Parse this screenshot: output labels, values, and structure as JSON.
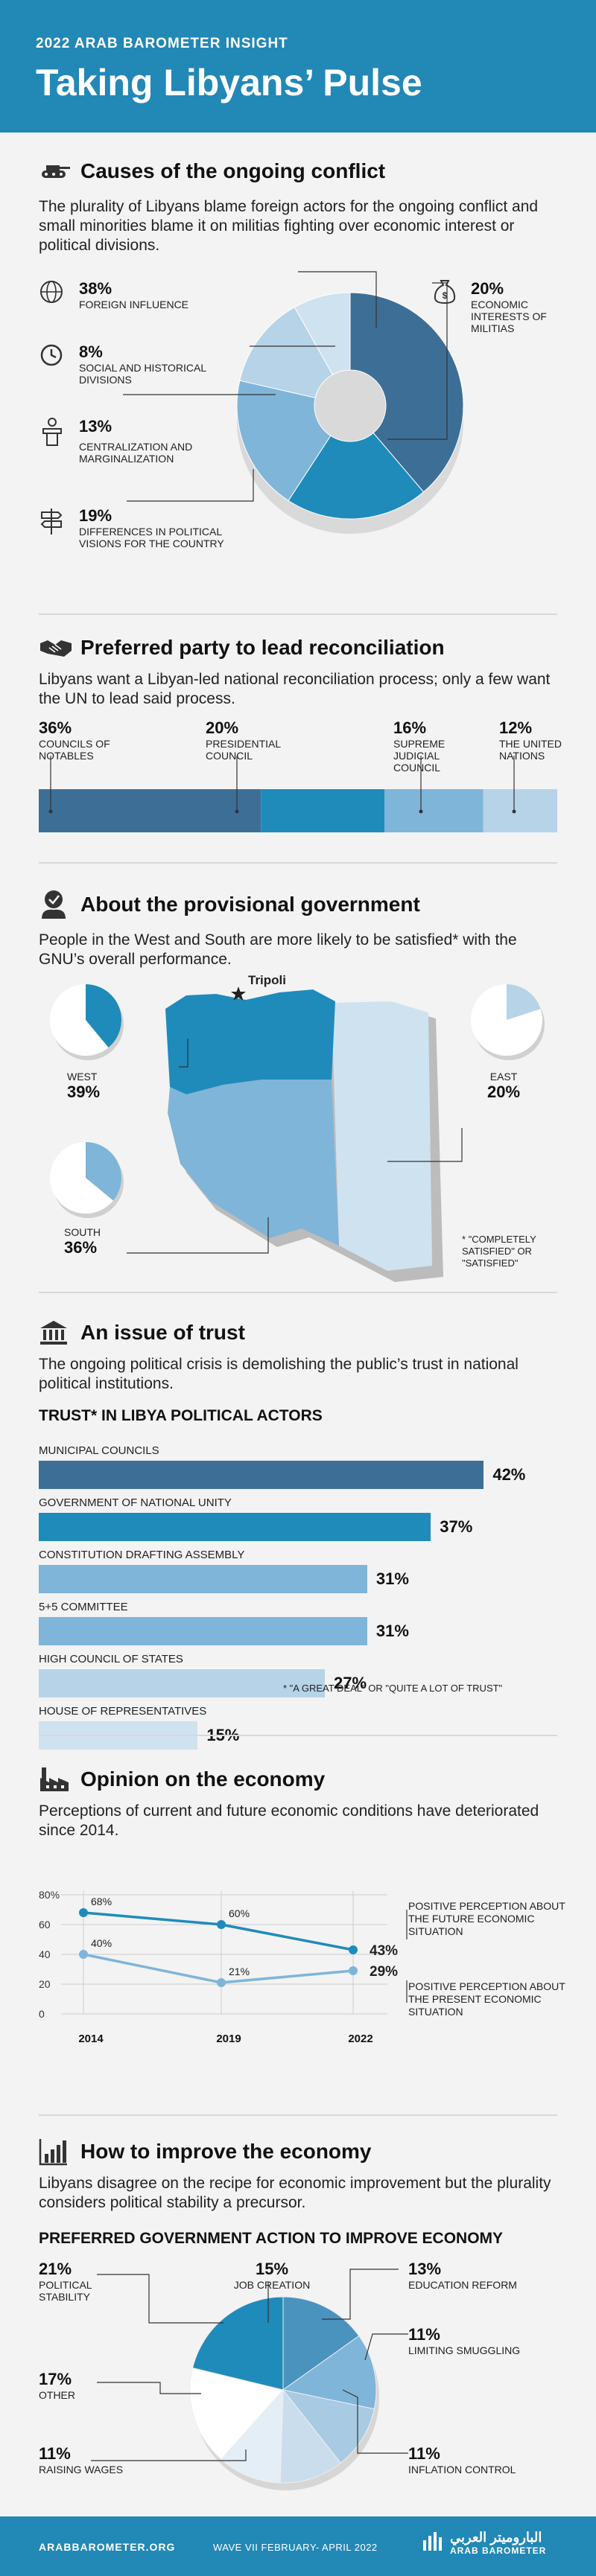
{
  "header": {
    "kicker": "2022 ARAB BAROMETER INSIGHT",
    "title": "Taking Libyans’ Pulse"
  },
  "s1": {
    "title": "Causes of the ongoing conflict",
    "intro": "The plurality of Libyans blame foreign actors for the ongoing conflict and small minorities blame it on militias fighting over economic interest or political divisions."
  },
  "s2": {
    "title": "Preferred party to lead reconciliation",
    "intro": "Libyans want a Libyan-led national reconciliation process; only a few want the UN to lead said process."
  },
  "s3": {
    "title": "About the provisional government",
    "intro": "People in the West and South are more likely to be satisfied* with the GNU’s overall performance.",
    "city": "Tripoli",
    "note": "* \"COMPLETELY SATISFIED\" OR \"SATISFIED\""
  },
  "s4": {
    "title": "An issue of trust",
    "intro": "The ongoing political crisis is demolishing the public’s trust in national political institutions.",
    "subtitle": "TRUST* IN LIBYA POLITICAL ACTORS",
    "note": "* \"A GREAT DEAL\" OR \"QUITE A LOT OF TRUST\""
  },
  "s5": {
    "title": "Opinion on the economy",
    "intro": "Perceptions of current and future economic conditions have deteriorated since 2014."
  },
  "s6": {
    "title": "How to improve the economy",
    "intro": "Libyans disagree on the recipe for economic improvement but the plurality considers political stability a precursor.",
    "subtitle": "PREFERRED GOVERNMENT ACTION TO IMPROVE ECONOMY"
  },
  "footer": {
    "site": "ARABBAROMETER.ORG",
    "wave": "WAVE VII FEBRUARY- APRIL 2022",
    "arabic": "الباروميتر العربي",
    "brand": "ARAB BAROMETER"
  },
  "colors": {
    "dark": "#3d6f96",
    "mid": "#1f8bbb",
    "light": "#7fb5d8",
    "pale": "#b6d3e8",
    "paler": "#cfe2f0"
  },
  "chart_data": [
    {
      "type": "pie",
      "title": "Causes of the ongoing conflict",
      "slices": [
        {
          "label": "FOREIGN INFLUENCE",
          "value": 38,
          "color": "#3d6f96"
        },
        {
          "label": "ECONOMIC INTERESTS OF MILITIAS",
          "value": 20,
          "color": "#1f8bbb"
        },
        {
          "label": "DIFFERENCES IN POLITICAL VISIONS FOR THE COUNTRY",
          "value": 19,
          "color": "#7fb5d8"
        },
        {
          "label": "CENTRALIZATION AND MARGINALIZATION",
          "value": 13,
          "color": "#b6d3e8"
        },
        {
          "label": "SOCIAL AND HISTORICAL DIVISIONS",
          "value": 8,
          "color": "#cfe2f0"
        }
      ],
      "labels": {
        "v0": "38%",
        "v1": "20%",
        "v2": "19%",
        "v3": "13%",
        "v4": "8%"
      }
    },
    {
      "type": "bar",
      "title": "Preferred party to lead reconciliation",
      "stacked": true,
      "categories": [
        "COUNCILS OF NOTABLES",
        "PRESIDENTIAL COUNCIL",
        "SUPREME JUDICIAL COUNCIL",
        "THE UNITED NATIONS"
      ],
      "values": [
        36,
        20,
        16,
        12
      ],
      "labels": [
        "36%",
        "20%",
        "16%",
        "12%"
      ],
      "colors": [
        "#3d6f96",
        "#1f8bbb",
        "#7fb5d8",
        "#b6d3e8"
      ]
    },
    {
      "type": "pie",
      "title": "About the provisional government",
      "regions": [
        {
          "label": "WEST",
          "value": 39,
          "text": "39%"
        },
        {
          "label": "EAST",
          "value": 20,
          "text": "20%"
        },
        {
          "label": "SOUTH",
          "value": 36,
          "text": "36%"
        }
      ]
    },
    {
      "type": "bar",
      "title": "TRUST* IN LIBYA POLITICAL ACTORS",
      "orientation": "horizontal",
      "categories": [
        "MUNICIPAL COUNCILS",
        "GOVERNMENT OF NATIONAL UNITY",
        "CONSTITUTION DRAFTING ASSEMBLY",
        "5+5 COMMITTEE",
        "HIGH COUNCIL OF STATES",
        "HOUSE OF REPRESENTATIVES"
      ],
      "values": [
        42,
        37,
        31,
        31,
        27,
        15
      ],
      "labels": [
        "42%",
        "37%",
        "31%",
        "31%",
        "27%",
        "15%"
      ],
      "colors": [
        "#3d6f96",
        "#1f8bbb",
        "#7fb5d8",
        "#7fb5d8",
        "#b6d3e8",
        "#cfe2f0"
      ],
      "xlim": [
        0,
        45
      ]
    },
    {
      "type": "line",
      "title": "Opinion on the economy",
      "x": [
        "2014",
        "2019",
        "2022"
      ],
      "yticks": [
        "80%",
        "60",
        "40",
        "20",
        "0"
      ],
      "ylim": [
        0,
        80
      ],
      "series": [
        {
          "name": "POSITIVE PERCEPTION ABOUT THE FUTURE ECONOMIC SITUATION",
          "values": [
            68,
            60,
            43
          ],
          "labels": [
            "68%",
            "60%",
            "43%"
          ],
          "color": "#1f8bbb"
        },
        {
          "name": "POSITIVE PERCEPTION ABOUT THE PRESENT ECONOMIC SITUATION",
          "values": [
            40,
            21,
            29
          ],
          "labels": [
            "40%",
            "21%",
            "29%"
          ],
          "color": "#7fb5d8"
        }
      ]
    },
    {
      "type": "pie",
      "title": "PREFERRED GOVERNMENT ACTION TO IMPROVE ECONOMY",
      "slices": [
        {
          "label": "JOB CREATION",
          "value": 15,
          "color": "#4a93bf"
        },
        {
          "label": "EDUCATION REFORM",
          "value": 13,
          "color": "#7fb5d8"
        },
        {
          "label": "LIMITING SMUGGLING",
          "value": 11,
          "color": "#a8cbe3"
        },
        {
          "label": "INFLATION CONTROL",
          "value": 11,
          "color": "#c9dded"
        },
        {
          "label": "RAISING WAGES",
          "value": 11,
          "color": "#e4eef6"
        },
        {
          "label": "OTHER",
          "value": 17,
          "color": "#ffffff"
        },
        {
          "label": "POLITICAL STABILITY",
          "value": 21,
          "color": "#1f8bbb"
        }
      ],
      "labels": {
        "v0": "15%",
        "v1": "13%",
        "v2": "11%",
        "v3": "11%",
        "v4": "11%",
        "v5": "17%",
        "v6": "21%"
      }
    }
  ]
}
